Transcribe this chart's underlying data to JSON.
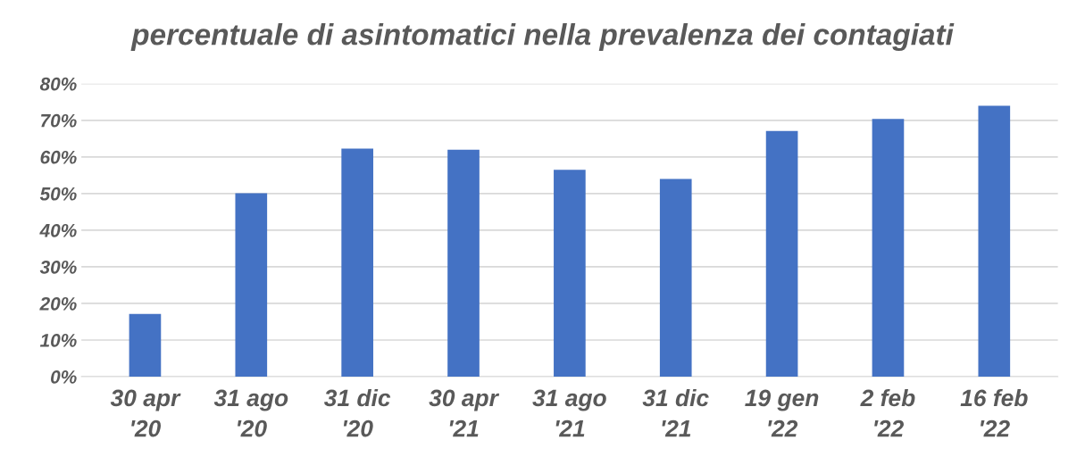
{
  "chart_data": {
    "type": "bar",
    "title": "percentuale di asintomatici nella prevalenza dei contagiati",
    "categories": [
      "30 apr\n'20",
      "31 ago\n'20",
      "31 dic\n'20",
      "30 apr\n'21",
      "31 ago\n'21",
      "31 dic\n'21",
      "19 gen\n'22",
      "2 feb\n'22",
      "16 feb\n'22"
    ],
    "values": [
      17.1,
      50.1,
      62.3,
      62.0,
      56.5,
      54.0,
      67.1,
      70.4,
      74.0
    ],
    "color": "#4472c4",
    "ylim": [
      0,
      80
    ],
    "yticks": [
      {
        "value": 0,
        "label": "0%"
      },
      {
        "value": 10,
        "label": "10%"
      },
      {
        "value": 20,
        "label": "20%"
      },
      {
        "value": 30,
        "label": "30%"
      },
      {
        "value": 40,
        "label": "40%"
      },
      {
        "value": 50,
        "label": "50%"
      },
      {
        "value": 60,
        "label": "60%"
      },
      {
        "value": 70,
        "label": "70%"
      },
      {
        "value": 80,
        "label": "80%"
      }
    ],
    "grid": "y"
  }
}
